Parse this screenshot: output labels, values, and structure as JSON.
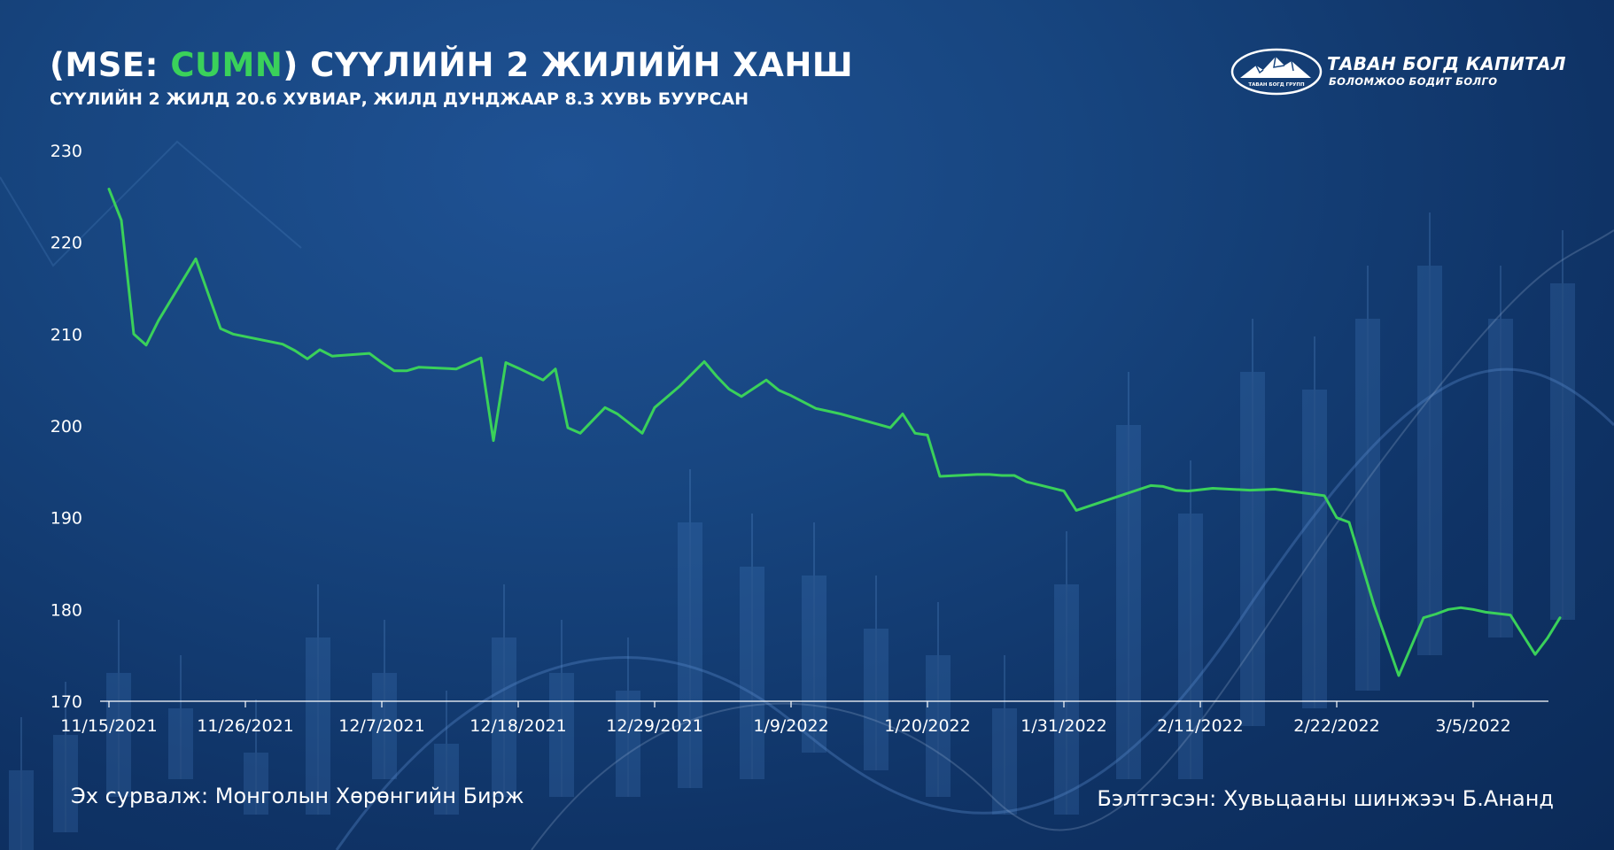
{
  "header": {
    "title_prefix": "(MSE: ",
    "title_ticker": "CUMN",
    "title_suffix": ") СҮҮЛИЙН 2 ЖИЛИЙН ХАНШ",
    "subtitle": "СҮҮЛИЙН 2 ЖИЛД 20.6 ХУВИАР, ЖИЛД ДУНДЖААР 8.3 ХУВЬ БУУРСАН"
  },
  "logo": {
    "name": "ТАВАН БОГД КАПИТАЛ",
    "tagline": "БОЛОМЖОО БОДИТ БОЛГО",
    "mark_text": "ТАВАН БОГД ГРУПП"
  },
  "footer": {
    "source": "Эх сурвалж: Монголын Хөрөнгийн Бирж",
    "author": "Бэлтгэсэн: Хувьцааны шинжээч Б.Ананд"
  },
  "colors": {
    "line": "#3ad15a",
    "ticker": "#3ad15a",
    "axis": "#ffffff",
    "background": "#17457f"
  },
  "chart_data": {
    "type": "line",
    "ylim": [
      170,
      230
    ],
    "yticks": [
      170,
      180,
      190,
      200,
      210,
      220,
      230
    ],
    "x_tick_labels": [
      "11/15/2021",
      "11/26/2021",
      "12/7/2021",
      "12/18/2021",
      "12/29/2021",
      "1/9/2022",
      "1/20/2022",
      "1/31/2022",
      "2/11/2022",
      "2/22/2022",
      "3/5/2022"
    ],
    "x_tick_days": [
      0,
      11,
      22,
      33,
      44,
      55,
      66,
      77,
      88,
      99,
      110
    ],
    "grid": false,
    "series": [
      {
        "x": [
          0,
          1,
          2,
          3,
          4,
          7,
          9,
          10,
          14,
          15,
          16,
          17,
          18,
          21,
          22,
          23,
          24,
          25,
          28,
          30,
          31,
          32,
          33,
          35,
          36,
          37,
          38,
          40,
          41,
          43,
          44,
          46,
          48,
          49,
          50,
          51,
          53,
          54,
          55,
          57,
          58,
          59,
          63,
          64,
          65,
          66,
          67,
          70,
          71,
          72,
          73,
          74,
          77,
          78,
          84,
          85,
          86,
          87,
          89,
          92,
          94,
          98,
          99,
          100,
          101,
          102,
          104,
          106,
          107,
          108,
          109,
          110,
          111,
          113,
          115,
          116,
          117
        ],
        "y": [
          225.8,
          222.4,
          210.0,
          208.8,
          211.5,
          218.2,
          210.6,
          210.0,
          208.9,
          208.2,
          207.3,
          208.3,
          207.6,
          207.9,
          206.9,
          206.0,
          206.0,
          206.4,
          206.2,
          207.4,
          198.4,
          206.9,
          206.3,
          205.0,
          206.2,
          199.8,
          199.2,
          202.0,
          201.3,
          199.2,
          202.0,
          204.3,
          207.0,
          205.4,
          204.0,
          203.2,
          205.0,
          203.9,
          203.3,
          201.9,
          201.6,
          201.3,
          199.8,
          201.3,
          199.2,
          199.0,
          194.5,
          194.7,
          194.7,
          194.6,
          194.6,
          193.9,
          192.9,
          190.8,
          193.5,
          193.4,
          193.0,
          192.9,
          193.2,
          193.0,
          193.1,
          192.4,
          190.0,
          189.5,
          185.0,
          180.5,
          172.8,
          179.1,
          179.5,
          180.0,
          180.2,
          180.0,
          179.7,
          179.4,
          175.1,
          176.9,
          179.1
        ]
      }
    ]
  }
}
